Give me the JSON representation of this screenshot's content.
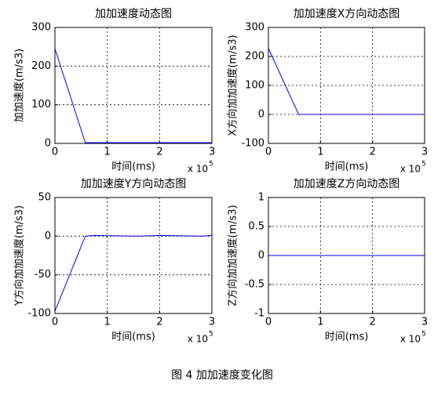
{
  "chart_data": [
    {
      "type": "line",
      "title": "加加速度动态图",
      "x_label": "时间(ms)",
      "y_label": "加加速度(m/s3)",
      "x_multiplier": "x 10",
      "x_multiplier_exp": "5",
      "x": [
        0,
        0.58,
        3
      ],
      "values": [
        245,
        2,
        2
      ],
      "color": "#0000ff",
      "xlim": [
        0,
        3
      ],
      "xticks": [
        0,
        1,
        2,
        3
      ],
      "ylim": [
        0,
        300
      ],
      "yticks": [
        0,
        100,
        200,
        300
      ],
      "grid": true
    },
    {
      "type": "line",
      "title": "加加速度X方向动态图",
      "x_label": "时间(ms)",
      "y_label": "X方向加加速度(m/s3)",
      "x_multiplier": "x 10",
      "x_multiplier_exp": "5",
      "x": [
        0,
        0.58,
        3
      ],
      "values": [
        228,
        0,
        0
      ],
      "color": "#0000ff",
      "xlim": [
        0,
        3
      ],
      "xticks": [
        0,
        1,
        2,
        3
      ],
      "ylim": [
        -100,
        300
      ],
      "yticks": [
        -100,
        0,
        100,
        200,
        300
      ],
      "grid": true
    },
    {
      "type": "line",
      "title": "加加速度Y方向动态图",
      "x_label": "时间(ms)",
      "y_label": "Y方向加加速度(m/s3)",
      "x_multiplier": "x 10",
      "x_multiplier_exp": "5",
      "x": [
        0,
        0.58,
        0.75,
        1.6,
        2.0,
        2.8,
        3
      ],
      "values": [
        -97,
        0,
        1,
        0,
        1,
        0,
        1
      ],
      "color": "#0000ff",
      "xlim": [
        0,
        3
      ],
      "xticks": [
        0,
        1,
        2,
        3
      ],
      "ylim": [
        -100,
        50
      ],
      "yticks": [
        -100,
        -50,
        0,
        50
      ],
      "grid": true
    },
    {
      "type": "line",
      "title": "加加速度Z方向动态图",
      "x_label": "时间(ms)",
      "y_label": "Z方向加加速度(m/s3)",
      "x_multiplier": "x 10",
      "x_multiplier_exp": "5",
      "x": [
        0,
        3
      ],
      "values": [
        0,
        0
      ],
      "color": "#0000ff",
      "xlim": [
        0,
        3
      ],
      "xticks": [
        0,
        1,
        2,
        3
      ],
      "ylim": [
        -1,
        1
      ],
      "yticks": [
        -1,
        -0.5,
        0,
        0.5,
        1
      ],
      "grid": true
    }
  ],
  "caption": "图 4  加加速度变化图"
}
